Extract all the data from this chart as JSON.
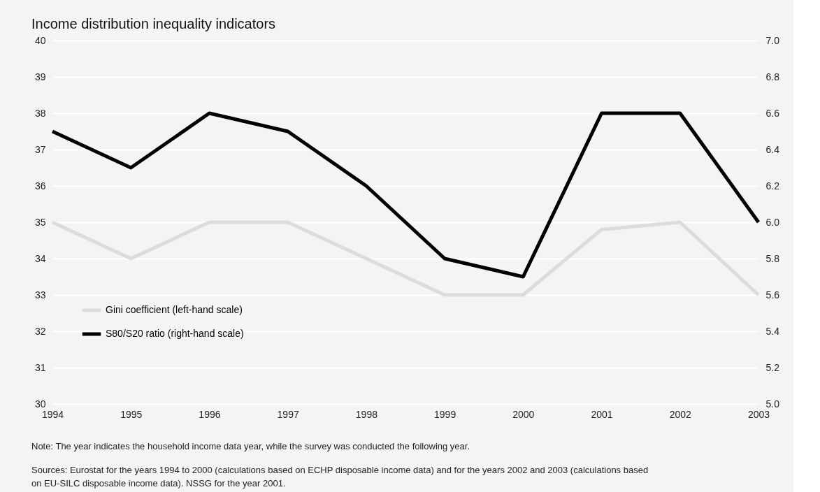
{
  "chart_data": {
    "type": "line",
    "title": "Income distribution inequality indicators",
    "categories": [
      "1994",
      "1995",
      "1996",
      "1997",
      "1998",
      "1999",
      "2000",
      "2001",
      "2002",
      "2003"
    ],
    "series": [
      {
        "name": "Gini coefficient (left-hand scale)",
        "color": "#dcdcdc",
        "values": [
          35,
          34,
          35,
          35,
          34,
          33,
          33,
          34.8,
          35,
          33
        ]
      },
      {
        "name": "S80/S20 ratio (right-hand scale)",
        "color": "#000000",
        "axis": "y2",
        "values": [
          6.5,
          6.3,
          6.6,
          6.5,
          6.2,
          5.8,
          5.7,
          6.6,
          6.6,
          6.0
        ]
      }
    ],
    "ylim": [
      30,
      40
    ],
    "yticks": [
      30,
      31,
      32,
      33,
      34,
      35,
      36,
      37,
      38,
      39,
      40
    ],
    "y2lim": [
      5.0,
      7.0
    ],
    "y2ticks": [
      {
        "value": 5.0,
        "label": "5.0"
      },
      {
        "value": 5.2,
        "label": "5.2"
      },
      {
        "value": 5.4,
        "label": "5.4"
      },
      {
        "value": 5.6,
        "label": "5.6"
      },
      {
        "value": 5.8,
        "label": "5.8"
      },
      {
        "value": 6.0,
        "label": "6.0"
      },
      {
        "value": 6.2,
        "label": "6.2"
      },
      {
        "value": 6.4,
        "label": "6.4"
      },
      {
        "value": 6.6,
        "label": "6.6"
      },
      {
        "value": 6.8,
        "label": "6.8"
      },
      {
        "value": 7.0,
        "label": "7.0"
      }
    ],
    "grid": "y",
    "legend": "bottom left",
    "marker": "none",
    "line_style": "solid",
    "annotations": [
      "Note: The year indicates the household income data year, while the survey was conducted the following year.",
      "Sources: Eurostat for the years 1994 to 2000 (calculations based on ECHP disposable income data) and for the years 2002 and 2003 (calculations based on EU-SILC disposable income data). NSSG for the year 2001."
    ]
  }
}
